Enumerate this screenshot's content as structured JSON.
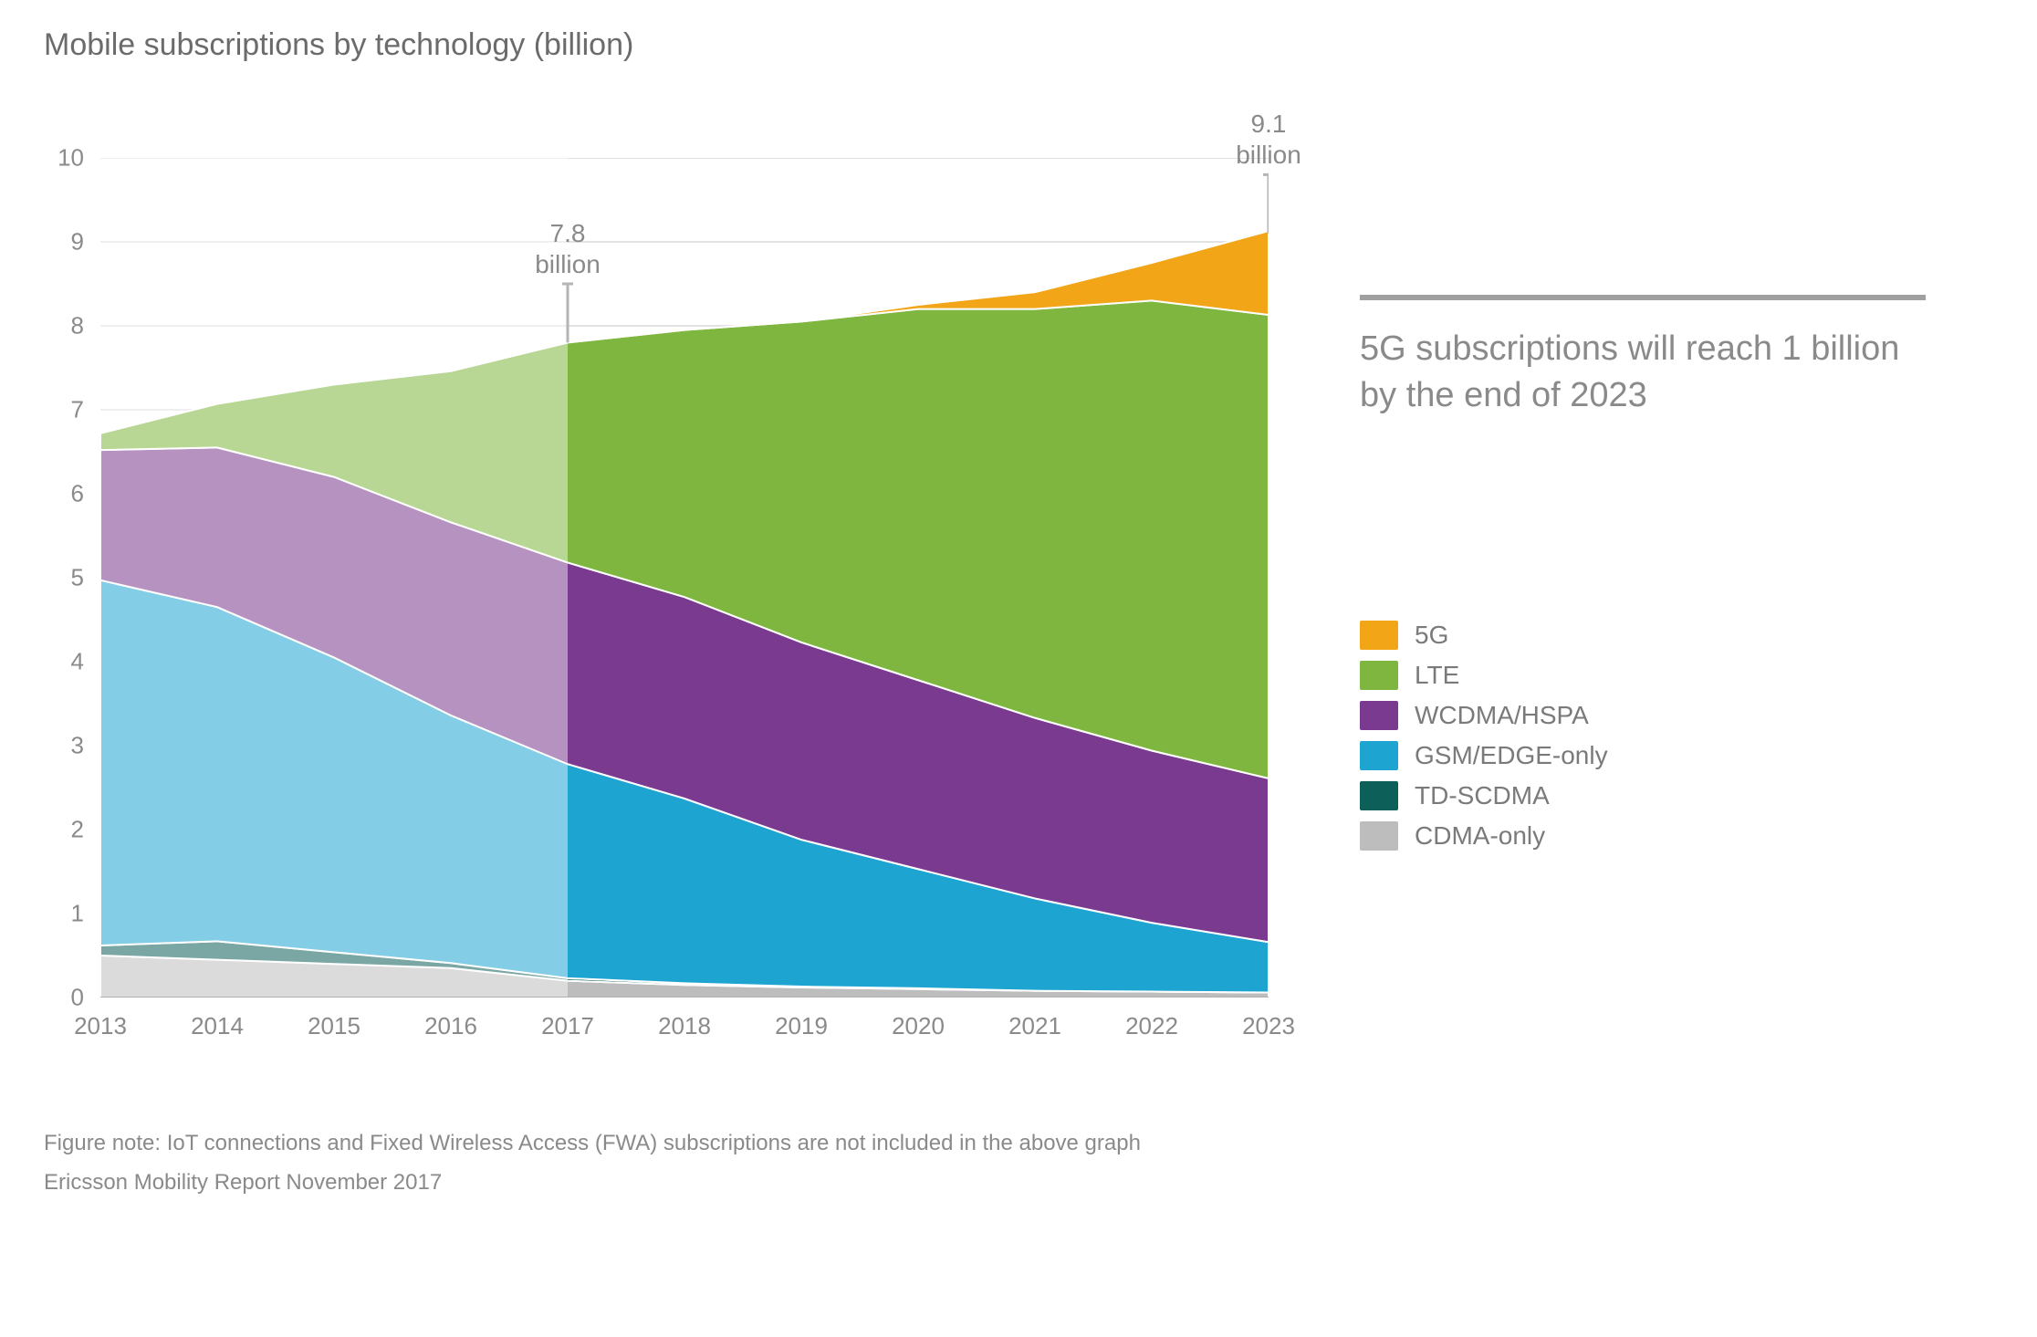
{
  "title": "Mobile subscriptions by technology (billion)",
  "chart": {
    "type": "stacked-area",
    "x_categories": [
      "2013",
      "2014",
      "2015",
      "2016",
      "2017",
      "2018",
      "2019",
      "2020",
      "2021",
      "2022",
      "2023"
    ],
    "ylim": [
      0,
      10
    ],
    "ytick_step": 1,
    "yticks": [
      "0",
      "1",
      "2",
      "3",
      "4",
      "5",
      "6",
      "7",
      "8",
      "9",
      "10"
    ],
    "background_color": "#ffffff",
    "grid_color": "#d9d9d9",
    "axis_label_color": "#8a8a8a",
    "axis_fontsize": 26,
    "series_order_bottom_to_top": [
      "CDMA-only",
      "TD-SCDMA",
      "GSM/EDGE-only",
      "WCDMA/HSPA",
      "LTE",
      "5G"
    ],
    "series": {
      "CDMA-only": {
        "color": "#bdbdbd",
        "values": [
          0.5,
          0.45,
          0.4,
          0.35,
          0.2,
          0.15,
          0.12,
          0.1,
          0.08,
          0.07,
          0.06
        ]
      },
      "TD-SCDMA": {
        "color": "#0d6059",
        "values": [
          0.12,
          0.22,
          0.14,
          0.06,
          0.03,
          0.02,
          0.01,
          0.01,
          0.0,
          0.0,
          0.0
        ]
      },
      "GSM/EDGE-only": {
        "color": "#1ea4d1",
        "values": [
          4.35,
          3.98,
          3.51,
          2.95,
          2.55,
          2.2,
          1.75,
          1.42,
          1.1,
          0.82,
          0.6
        ]
      },
      "WCDMA/HSPA": {
        "color": "#7a3a8f",
        "values": [
          1.55,
          1.9,
          2.15,
          2.3,
          2.4,
          2.4,
          2.35,
          2.25,
          2.15,
          2.05,
          1.95
        ]
      },
      "LTE": {
        "color": "#7eb63f",
        "values": [
          0.2,
          0.52,
          1.1,
          1.8,
          2.62,
          3.18,
          3.82,
          4.42,
          4.87,
          5.36,
          5.52
        ]
      },
      "5G": {
        "color": "#f2a516",
        "values": [
          0.0,
          0.0,
          0.0,
          0.0,
          0.0,
          0.0,
          0.0,
          0.05,
          0.2,
          0.45,
          1.0
        ]
      }
    },
    "historical_overlay": {
      "color": "#ffffff",
      "opacity": 0.45,
      "from_x_index": 0,
      "to_x_index": 4
    },
    "callouts": [
      {
        "x_index": 4,
        "value_text": "7.8",
        "unit_text": "billion",
        "line_from_y": 8.5,
        "line_to_y": 7.8
      },
      {
        "x_index": 10,
        "value_text": "9.1",
        "unit_text": "billion",
        "line_from_y": 9.8,
        "line_to_y": 9.1
      }
    ],
    "stroke_between_series": "#ffffff",
    "stroke_width": 2
  },
  "side": {
    "divider_color": "#a0a0a0",
    "headline": "5G subscriptions will reach 1 billion by the end of 2023",
    "headline_fontsize": 38,
    "headline_color": "#8a8a8a"
  },
  "legend": {
    "items": [
      {
        "label": "5G",
        "color": "#f2a516"
      },
      {
        "label": "LTE",
        "color": "#7eb63f"
      },
      {
        "label": "WCDMA/HSPA",
        "color": "#7a3a8f"
      },
      {
        "label": "GSM/EDGE-only",
        "color": "#1ea4d1"
      },
      {
        "label": "TD-SCDMA",
        "color": "#0d6059"
      },
      {
        "label": "CDMA-only",
        "color": "#bdbdbd"
      }
    ],
    "label_fontsize": 28,
    "label_color": "#7a7a7a"
  },
  "footnote": {
    "line1": "Figure note: IoT connections and Fixed Wireless Access (FWA) subscriptions are not included in the above graph",
    "line2": "Ericsson Mobility Report November 2017",
    "fontsize": 24,
    "color": "#8a8a8a"
  }
}
